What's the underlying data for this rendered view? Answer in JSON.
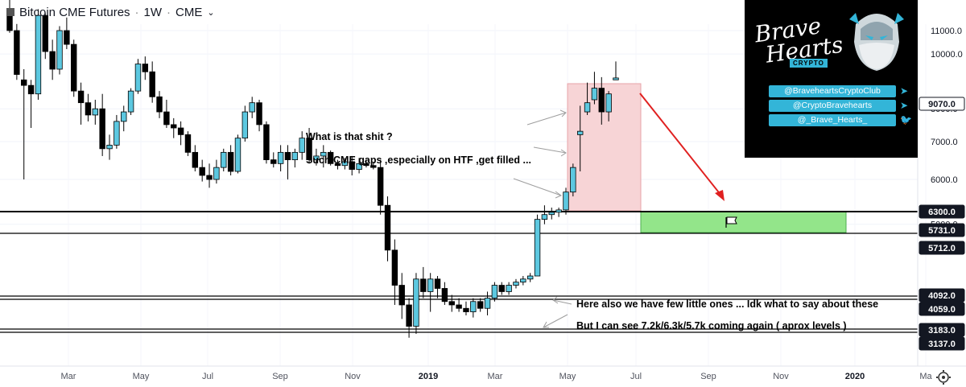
{
  "header": {
    "symbol": "Bitcoin CME Futures",
    "interval": "1W",
    "exchange": "CME"
  },
  "branding": {
    "title_line1": "Brave",
    "title_line2": "Hearts",
    "tag": "CRYPTO",
    "handles": [
      {
        "label": "@BraveheartsCryptoClub",
        "icon": "telegram-icon"
      },
      {
        "label": "@CryptoBravehearts",
        "icon": "telegram-icon"
      },
      {
        "label": "@_Brave_Hearts_",
        "icon": "twitter-icon"
      }
    ],
    "accent": "#33b5d8"
  },
  "annotations": {
    "note1": "What is that shit ?",
    "note2": "Such CME gaps ,especially on HTF ,get filled ...",
    "note3": "Here also we have few little ones ... Idk what to say about these",
    "note4": "But I can see 7.2k/6.3k/5.7k coming again ( aprox levels )"
  },
  "colors": {
    "up": "#5cc8e0",
    "down": "#000000",
    "pink_zone": "#f7d4d6",
    "green_zone": "#93e58a",
    "arrow": "#e02020",
    "label_bg": "#131722"
  },
  "chart_data": {
    "type": "candlestick",
    "title": "Bitcoin CME Futures · 1W · CME",
    "x_tick_labels": [
      "Mar",
      "May",
      "Jul",
      "Sep",
      "Nov",
      "2019",
      "Mar",
      "May",
      "Jul",
      "Sep",
      "Nov",
      "2020",
      "Ma"
    ],
    "y_tick_labels": [
      "11000.0",
      "10000.0",
      "8000.0",
      "7000.0",
      "6000.0",
      "5000.0"
    ],
    "price_axis_scale": "log",
    "price_labels": [
      {
        "value": "9070.0",
        "style": "current"
      },
      {
        "value": "6300.0",
        "style": "dark"
      },
      {
        "value": "5731.0",
        "style": "dark"
      },
      {
        "value": "5712.0",
        "style": "dark"
      },
      {
        "value": "4092.0",
        "style": "dark"
      },
      {
        "value": "4059.0",
        "style": "dark"
      },
      {
        "value": "3183.0",
        "style": "dark"
      },
      {
        "value": "3137.0",
        "style": "dark"
      }
    ],
    "horizontal_levels": [
      6300,
      5731,
      4092,
      4059,
      3183,
      3137
    ],
    "candles_ohlc": [
      [
        11900,
        12600,
        10900,
        11000
      ],
      [
        11000,
        11300,
        9000,
        9200
      ],
      [
        9000,
        9400,
        6000,
        8800
      ],
      [
        8800,
        9000,
        7400,
        8500
      ],
      [
        8500,
        12000,
        8300,
        11700
      ],
      [
        11700,
        11800,
        9800,
        10100
      ],
      [
        10100,
        10600,
        9000,
        9400
      ],
      [
        9400,
        11200,
        9200,
        11000
      ],
      [
        11000,
        11600,
        10200,
        10400
      ],
      [
        10400,
        10600,
        8400,
        8600
      ],
      [
        8600,
        8900,
        7500,
        8200
      ],
      [
        8200,
        8500,
        7600,
        7800
      ],
      [
        7800,
        8300,
        7500,
        8000
      ],
      [
        8000,
        8500,
        6600,
        6800
      ],
      [
        6800,
        7200,
        6500,
        6900
      ],
      [
        6900,
        7800,
        6800,
        7600
      ],
      [
        7600,
        8100,
        7300,
        7900
      ],
      [
        7900,
        8700,
        7800,
        8600
      ],
      [
        8600,
        9800,
        8500,
        9600
      ],
      [
        9600,
        9900,
        9000,
        9300
      ],
      [
        9300,
        9700,
        8200,
        8400
      ],
      [
        8400,
        8600,
        7700,
        7900
      ],
      [
        7900,
        8300,
        7400,
        7500
      ],
      [
        7500,
        7700,
        7100,
        7400
      ],
      [
        7400,
        7600,
        6900,
        7200
      ],
      [
        7200,
        7300,
        6600,
        6700
      ],
      [
        6700,
        6900,
        6200,
        6300
      ],
      [
        6300,
        6500,
        5950,
        6100
      ],
      [
        6100,
        6400,
        5800,
        6000
      ],
      [
        6000,
        6500,
        5900,
        6300
      ],
      [
        6300,
        6800,
        6200,
        6700
      ],
      [
        6700,
        6900,
        6100,
        6200
      ],
      [
        6200,
        7200,
        6150,
        7100
      ],
      [
        7100,
        8100,
        7000,
        7900
      ],
      [
        7900,
        8400,
        7700,
        8200
      ],
      [
        8200,
        8300,
        7300,
        7500
      ],
      [
        7500,
        7600,
        6400,
        6500
      ],
      [
        6500,
        6700,
        6300,
        6400
      ],
      [
        6400,
        6900,
        6200,
        6700
      ],
      [
        6700,
        6900,
        6000,
        6500
      ],
      [
        6500,
        6800,
        6300,
        6700
      ],
      [
        6700,
        7300,
        6500,
        7100
      ],
      [
        7100,
        7400,
        6400,
        6500
      ],
      [
        6500,
        6800,
        6350,
        6600
      ],
      [
        6600,
        6900,
        6300,
        6700
      ],
      [
        6700,
        6750,
        6350,
        6400
      ],
      [
        6400,
        6500,
        6250,
        6350
      ],
      [
        6350,
        6550,
        6250,
        6450
      ],
      [
        6450,
        6600,
        6100,
        6250
      ],
      [
        6250,
        6550,
        6150,
        6400
      ],
      [
        6400,
        6500,
        6300,
        6350
      ],
      [
        6350,
        6450,
        6250,
        6300
      ],
      [
        6300,
        6500,
        5200,
        5400
      ],
      [
        5400,
        5600,
        4300,
        4500
      ],
      [
        4500,
        4700,
        3600,
        3900
      ],
      [
        3900,
        4100,
        3400,
        3600
      ],
      [
        3600,
        3700,
        3150,
        3300
      ],
      [
        3300,
        4100,
        3200,
        4000
      ],
      [
        4000,
        4200,
        3700,
        3800
      ],
      [
        3800,
        4100,
        3500,
        4000
      ],
      [
        4000,
        4050,
        3700,
        3850
      ],
      [
        3850,
        3950,
        3600,
        3650
      ],
      [
        3650,
        3750,
        3500,
        3600
      ],
      [
        3600,
        3700,
        3500,
        3550
      ],
      [
        3550,
        3650,
        3450,
        3500
      ],
      [
        3500,
        3700,
        3420,
        3650
      ],
      [
        3650,
        3700,
        3500,
        3550
      ],
      [
        3550,
        3800,
        3450,
        3700
      ],
      [
        3700,
        3950,
        3650,
        3900
      ],
      [
        3900,
        3950,
        3750,
        3800
      ],
      [
        3800,
        3950,
        3750,
        3900
      ],
      [
        3900,
        4000,
        3850,
        3950
      ],
      [
        3950,
        4050,
        3900,
        4000
      ],
      [
        4000,
        4100,
        3950,
        4050
      ],
      [
        4050,
        5200,
        4050,
        5100
      ],
      [
        5100,
        5400,
        5000,
        5200
      ],
      [
        5200,
        5350,
        5100,
        5250
      ],
      [
        5250,
        5350,
        5150,
        5300
      ],
      [
        5300,
        5800,
        5200,
        5700
      ],
      [
        5700,
        6400,
        5600,
        6300
      ],
      [
        7200,
        8100,
        6200,
        7300
      ],
      [
        7900,
        8900,
        7800,
        8200
      ],
      [
        8300,
        9300,
        8150,
        8700
      ],
      [
        8700,
        9100,
        7500,
        7900
      ],
      [
        7900,
        8600,
        7600,
        8500
      ],
      [
        9000,
        9700,
        9000,
        9070
      ]
    ]
  }
}
